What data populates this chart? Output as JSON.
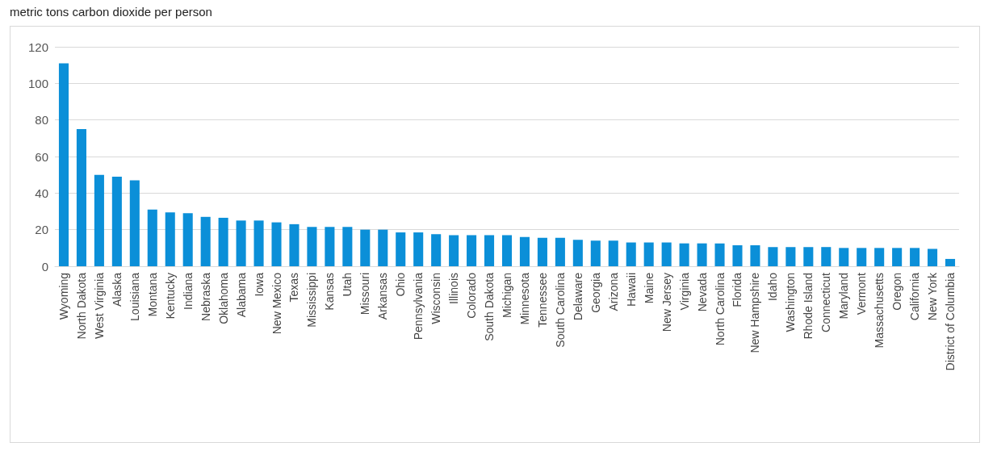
{
  "chart_data": {
    "type": "bar",
    "ylabel": "metric tons carbon dioxide per person",
    "categories": [
      "Wyoming",
      "North Dakota",
      "West Virginia",
      "Alaska",
      "Louisiana",
      "Montana",
      "Kentucky",
      "Indiana",
      "Nebraska",
      "Oklahoma",
      "Alabama",
      "Iowa",
      "New Mexico",
      "Texas",
      "Mississippi",
      "Kansas",
      "Utah",
      "Missouri",
      "Arkansas",
      "Ohio",
      "Pennsylvania",
      "Wisconsin",
      "Illinois",
      "Colorado",
      "South Dakota",
      "Michigan",
      "Minnesota",
      "Tennessee",
      "South Carolina",
      "Delaware",
      "Georgia",
      "Arizona",
      "Hawaii",
      "Maine",
      "New Jersey",
      "Virginia",
      "Nevada",
      "North Carolina",
      "Florida",
      "New Hampshire",
      "Idaho",
      "Washington",
      "Rhode Island",
      "Connecticut",
      "Maryland",
      "Vermont",
      "Massachusetts",
      "Oregon",
      "California",
      "New York",
      "District of Columbia"
    ],
    "values": [
      111,
      75,
      50,
      49,
      47,
      31,
      29.5,
      29,
      27,
      26.5,
      25,
      25,
      24,
      23,
      21.5,
      21.5,
      21.5,
      20,
      20,
      18.5,
      18.5,
      17.5,
      17,
      17,
      17,
      17,
      16,
      15.5,
      15.5,
      14.5,
      14,
      14,
      13,
      13,
      13,
      12.5,
      12.5,
      12.5,
      11.5,
      11.5,
      10.5,
      10.5,
      10.5,
      10.5,
      10,
      10,
      10,
      10,
      10,
      9.5,
      4
    ],
    "color": "#0b8fd8",
    "ylim": [
      0,
      120
    ],
    "yticks": [
      0,
      20,
      40,
      60,
      80,
      100,
      120
    ],
    "grid": "y"
  }
}
